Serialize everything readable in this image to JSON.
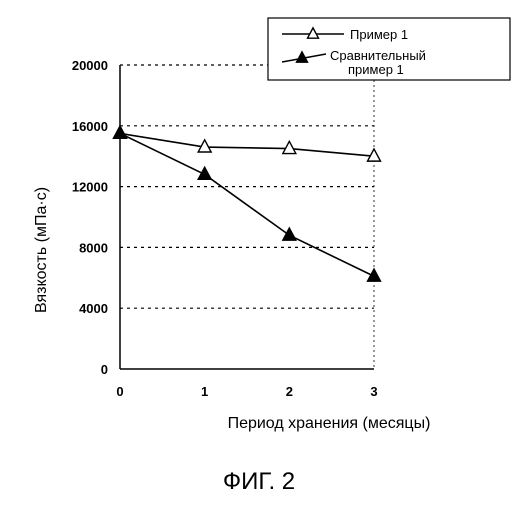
{
  "chart_data": {
    "type": "line",
    "xlabel": "Период хранения (месяцы)",
    "ylabel": "Вязкость (мПа·с)",
    "xlim": [
      0,
      3
    ],
    "ylim": [
      0,
      20000
    ],
    "x": [
      0,
      1,
      2,
      3
    ],
    "x_ticks": [
      "0",
      "1",
      "2",
      "3"
    ],
    "y_ticks": [
      "0",
      "4000",
      "8000",
      "12000",
      "16000",
      "20000"
    ],
    "grid": "horizontal dashed",
    "legend_position": "top-right",
    "series": [
      {
        "name": "Пример 1",
        "marker": "open-triangle",
        "values": [
          15500,
          14600,
          14500,
          14000
        ]
      },
      {
        "name_lines": [
          "Сравнительный",
          "пример 1"
        ],
        "marker": "filled-triangle",
        "values": [
          15500,
          12800,
          8800,
          6100
        ]
      }
    ]
  },
  "caption": "ФИГ. 2"
}
